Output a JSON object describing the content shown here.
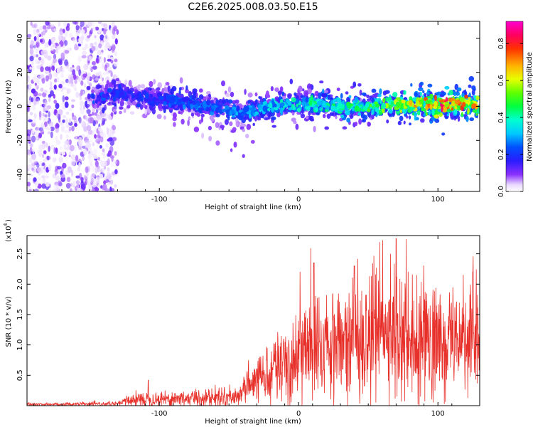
{
  "title": "C2E6.2025.008.03.50.E15",
  "chart_data": [
    {
      "type": "heatmap",
      "id": "spectrogram",
      "xlabel": "Height of straight line (km)",
      "ylabel": "Frequency (Hz)",
      "xlim": [
        -195,
        130
      ],
      "ylim": [
        -50,
        50
      ],
      "x_ticks": [
        -100,
        0,
        100
      ],
      "y_ticks": [
        -40,
        -20,
        0,
        20,
        40
      ],
      "colorbar": {
        "label": "Normalized spectral amplitude",
        "range": [
          0,
          0.92
        ],
        "ticks": [
          0.0,
          0.2,
          0.4,
          0.6,
          0.8
        ],
        "colormap": "rainbow (white→violet→blue→cyan→green→yellow→red→magenta)"
      },
      "ridge_centerline": [
        {
          "x": -145,
          "y": 5
        },
        {
          "x": -128,
          "y": 8
        },
        {
          "x": -110,
          "y": 4
        },
        {
          "x": -90,
          "y": 3
        },
        {
          "x": -70,
          "y": 1
        },
        {
          "x": -55,
          "y": -2
        },
        {
          "x": -40,
          "y": -4
        },
        {
          "x": -25,
          "y": 0
        },
        {
          "x": -10,
          "y": 1
        },
        {
          "x": 10,
          "y": 1
        },
        {
          "x": 30,
          "y": 0
        },
        {
          "x": 50,
          "y": 0
        },
        {
          "x": 70,
          "y": 1
        },
        {
          "x": 90,
          "y": 1
        },
        {
          "x": 110,
          "y": 1
        },
        {
          "x": 130,
          "y": 2
        }
      ],
      "ridge_amplitude": [
        {
          "x": -145,
          "v": 0.25
        },
        {
          "x": -120,
          "v": 0.2
        },
        {
          "x": -80,
          "v": 0.28
        },
        {
          "x": -40,
          "v": 0.3
        },
        {
          "x": -10,
          "v": 0.4
        },
        {
          "x": 20,
          "v": 0.45
        },
        {
          "x": 50,
          "v": 0.5
        },
        {
          "x": 80,
          "v": 0.65
        },
        {
          "x": 100,
          "v": 0.85
        },
        {
          "x": 130,
          "v": 0.7
        }
      ],
      "noise_region_x": [
        -195,
        -130
      ]
    },
    {
      "type": "line",
      "id": "snr",
      "xlabel": "Height of straight line (km)",
      "ylabel": "SNR (10 * v/v)",
      "multiplier_label": "(x10",
      "multiplier_exponent": "4",
      "xlim": [
        -195,
        130
      ],
      "ylim": [
        0,
        2.8
      ],
      "x_ticks": [
        -100,
        0,
        100
      ],
      "y_ticks": [
        0.5,
        1.0,
        1.5,
        2.0,
        2.5
      ],
      "line_color": "#e8302a",
      "envelope_mean": [
        {
          "x": -195,
          "y": 0.02
        },
        {
          "x": -130,
          "y": 0.03
        },
        {
          "x": -120,
          "y": 0.1
        },
        {
          "x": -80,
          "y": 0.12
        },
        {
          "x": -45,
          "y": 0.15
        },
        {
          "x": -30,
          "y": 0.4
        },
        {
          "x": -20,
          "y": 0.6
        },
        {
          "x": -10,
          "y": 0.75
        },
        {
          "x": 0,
          "y": 0.9
        },
        {
          "x": 15,
          "y": 1.0
        },
        {
          "x": 30,
          "y": 1.15
        },
        {
          "x": 50,
          "y": 1.2
        },
        {
          "x": 70,
          "y": 1.25
        },
        {
          "x": 90,
          "y": 1.1
        },
        {
          "x": 110,
          "y": 1.05
        },
        {
          "x": 130,
          "y": 1.1
        }
      ],
      "peaks": [
        {
          "x": -108,
          "y": 0.42
        },
        {
          "x": 11,
          "y": 2.35
        },
        {
          "x": 40,
          "y": 2.3
        },
        {
          "x": 70,
          "y": 2.75
        },
        {
          "x": 125,
          "y": 2.2
        }
      ]
    }
  ]
}
